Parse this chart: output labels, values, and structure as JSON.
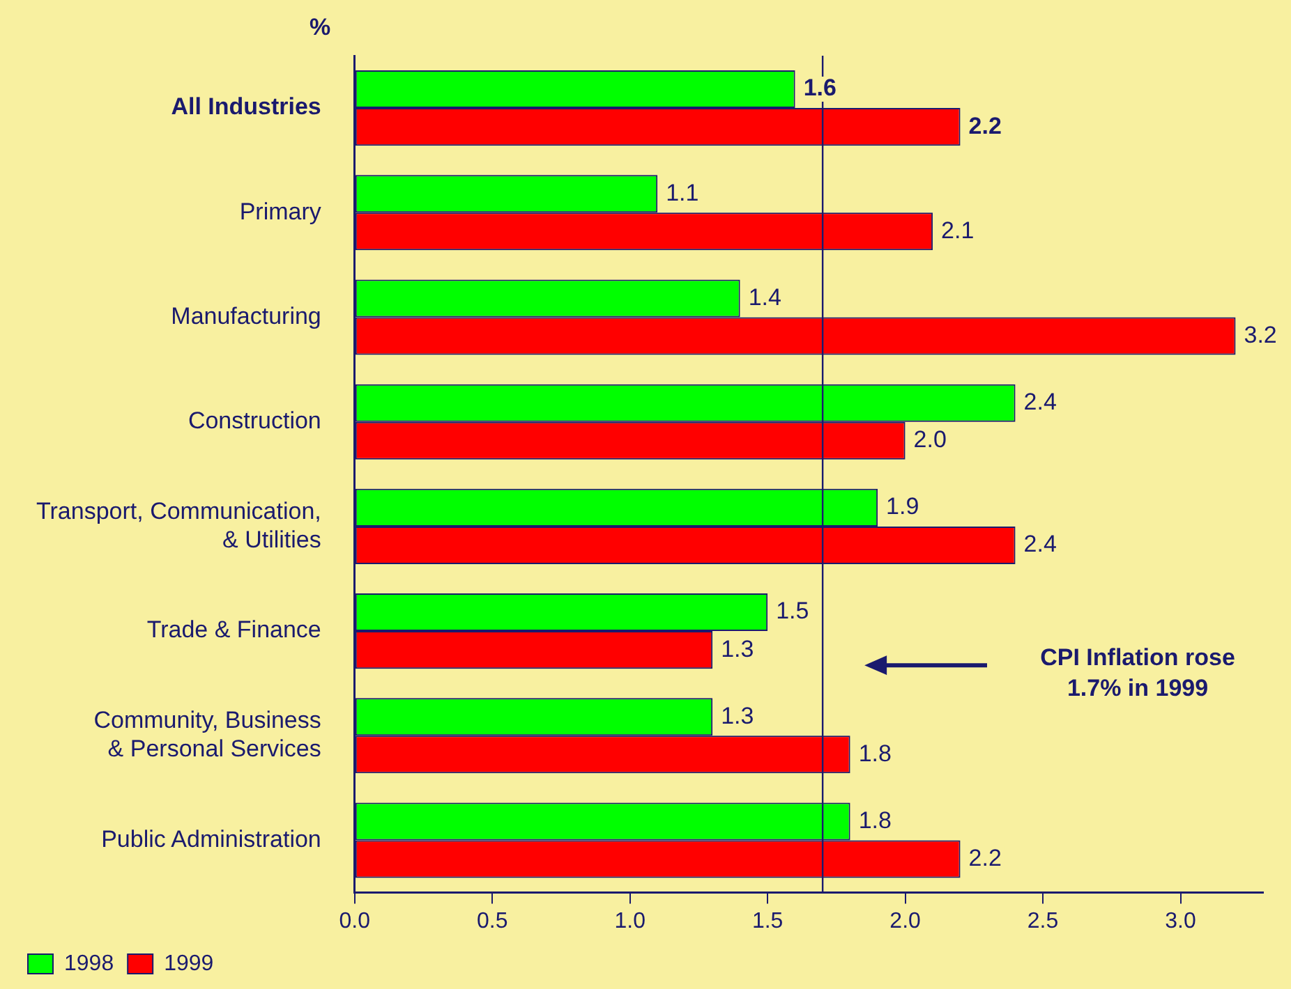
{
  "chart_data": {
    "type": "bar",
    "orientation": "horizontal",
    "xlabel": "%",
    "categories": [
      "All Industries",
      "Primary",
      "Manufacturing",
      "Construction",
      "Transport, Communication,\n& Utilities",
      "Trade & Finance",
      "Community, Business\n& Personal Services",
      "Public Administration"
    ],
    "series": [
      {
        "name": "1998",
        "color": "#00ff00",
        "values": [
          1.6,
          1.1,
          1.4,
          2.4,
          1.9,
          1.5,
          1.3,
          1.8
        ],
        "value_labels": [
          "1.6",
          "1.1",
          "1.4",
          "2.4",
          "1.9",
          "1.5",
          "1.3",
          "1.8"
        ]
      },
      {
        "name": "1999",
        "color": "#ff0000",
        "values": [
          2.2,
          2.1,
          3.2,
          2.0,
          2.4,
          1.3,
          1.8,
          2.2
        ],
        "value_labels": [
          "2.2",
          "2.1",
          "3.2",
          "2.0",
          "2.4",
          "1.3",
          "1.8",
          "2.2"
        ]
      }
    ],
    "xlim": [
      0,
      3.3
    ],
    "xticks": [
      {
        "value": 0,
        "label": "0.0"
      },
      {
        "value": 0.5,
        "label": "0.5"
      },
      {
        "value": 1,
        "label": "1.0"
      },
      {
        "value": 1.5,
        "label": "1.5"
      },
      {
        "value": 2,
        "label": "2.0"
      },
      {
        "value": 2.5,
        "label": "2.5"
      },
      {
        "value": 3,
        "label": "3.0"
      }
    ],
    "ref_lines": [
      {
        "axis": "x",
        "value": 1.7,
        "label": "CPI Inflation rose\n1.7% in 1999"
      }
    ],
    "grid": false,
    "legend": "bottom left"
  }
}
